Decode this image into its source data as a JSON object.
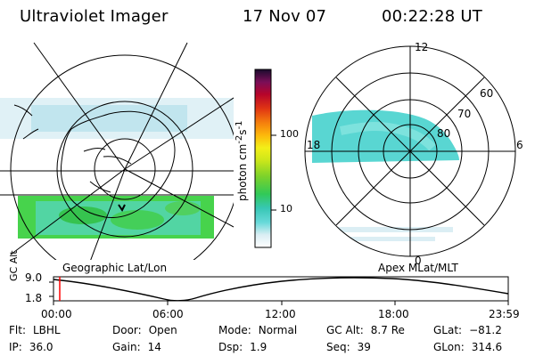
{
  "header": {
    "instrument": "Ultraviolet Imager",
    "date": "17 Nov 07",
    "time": "00:22:28 UT"
  },
  "panels": {
    "geographic": {
      "label": "Geographic Lat/Lon"
    },
    "apex": {
      "label": "Apex MLat/MLT",
      "mlat_ticks": [
        "60",
        "70",
        "80"
      ],
      "mlt_ticks": [
        "12",
        "18",
        "6",
        "0"
      ]
    }
  },
  "colorbar": {
    "unit_prefix": "photon cm",
    "unit_exp1": "-2",
    "unit_middle": "s",
    "unit_exp2": "-1",
    "ticks": [
      "100",
      "10"
    ]
  },
  "altitude_plot": {
    "axis_label": "GC Alt",
    "y_max": "9.0",
    "y_min": "1.8",
    "time_ticks": [
      "00:00",
      "06:00",
      "12:00",
      "18:00",
      "23:59"
    ]
  },
  "info": {
    "flt_key": "Flt:",
    "flt_val": "LBHL",
    "door_key": "Door:",
    "door_val": "Open",
    "mode_key": "Mode:",
    "mode_val": "Normal",
    "gcalt_key": "GC Alt:",
    "gcalt_val": "8.7 Re",
    "glat_key": "GLat:",
    "glat_val": "−81.2",
    "ip_key": "IP:",
    "ip_val": "36.0",
    "gain_key": "Gain:",
    "gain_val": "14",
    "dsp_key": "Dsp:",
    "dsp_val": "1.9",
    "seq_key": "Seq:",
    "seq_val": "39",
    "glon_key": "GLon:",
    "glon_val": "314.6"
  },
  "colors": {
    "cursor": "#ff0000",
    "lines": "#000000",
    "aurora_green": "#47d34c",
    "aurora_cyan": "#59d6d2",
    "aurora_pale": "#dbeef4"
  }
}
